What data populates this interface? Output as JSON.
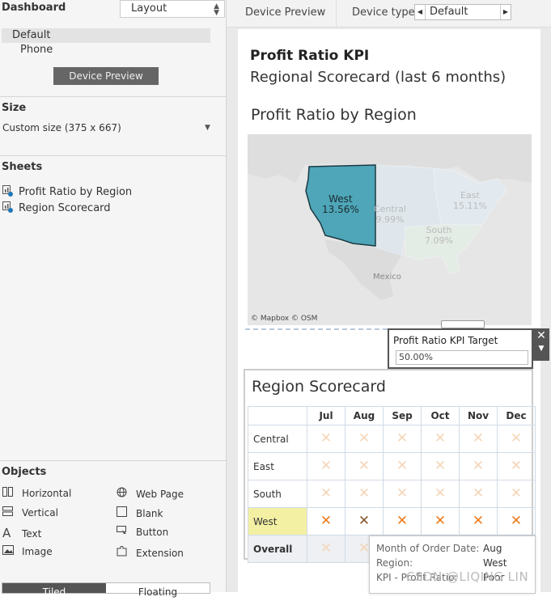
{
  "left_panel": {
    "dashboard_label": "Dashboard",
    "layout_tab": "Layout",
    "devices": [
      "Default",
      "Phone"
    ],
    "device_preview_button": "Device Preview",
    "size": {
      "title": "Size",
      "value": "Custom size (375 x 667)"
    },
    "sheets": {
      "title": "Sheets",
      "items": [
        "Profit Ratio by Region",
        "Region Scorecard"
      ]
    },
    "objects": {
      "title": "Objects",
      "items": [
        {
          "label": "Horizontal",
          "icon": "horizontal-icon"
        },
        {
          "label": "Web Page",
          "icon": "globe-icon"
        },
        {
          "label": "Vertical",
          "icon": "vertical-icon"
        },
        {
          "label": "Blank",
          "icon": "blank-icon"
        },
        {
          "label": "Text",
          "icon": "text-icon"
        },
        {
          "label": "Button",
          "icon": "button-icon"
        },
        {
          "label": "Image",
          "icon": "image-icon"
        },
        {
          "label": "Extension",
          "icon": "extension-icon"
        }
      ]
    },
    "tabs": [
      "Tiled",
      "Floating"
    ]
  },
  "topbar": {
    "device_preview": "Device Preview",
    "device_type_label": "Device type",
    "device_type_value": "Default"
  },
  "dashboard": {
    "title": "Profit Ratio KPI",
    "subtitle": "Regional Scorecard (last 6 months)",
    "map": {
      "title": "Profit Ratio by Region",
      "regions": [
        {
          "name": "West",
          "value": "13.56%",
          "color": "#4ea6b8"
        },
        {
          "name": "Central",
          "value": "9.99%"
        },
        {
          "name": "East",
          "value": "15.11%"
        },
        {
          "name": "South",
          "value": "7.09%"
        }
      ],
      "mexico_label": "Mexico",
      "attribution": "© Mapbox © OSM"
    },
    "parameter": {
      "title": "Profit Ratio KPI Target",
      "value": "50.00%"
    },
    "scorecard": {
      "title": "Region Scorecard",
      "months": [
        "Jul",
        "Aug",
        "Sep",
        "Oct",
        "Nov",
        "Dec"
      ],
      "rows": [
        "Central",
        "East",
        "South",
        "West",
        "Overall"
      ],
      "mark": "✕"
    },
    "tooltip": {
      "month_label": "Month of Order Date:",
      "month_value": "Aug",
      "region_label": "Region:",
      "region_value": "West",
      "kpi_label": "KPI - Profit Ratio:",
      "kpi_value": "Poor"
    },
    "watermark": "CSDN @LIQING LIN"
  },
  "colors": {
    "west_region": "#4ea6b8",
    "mark_orange": "#ee7b1d",
    "highlight_row": "#f3f0a4"
  }
}
